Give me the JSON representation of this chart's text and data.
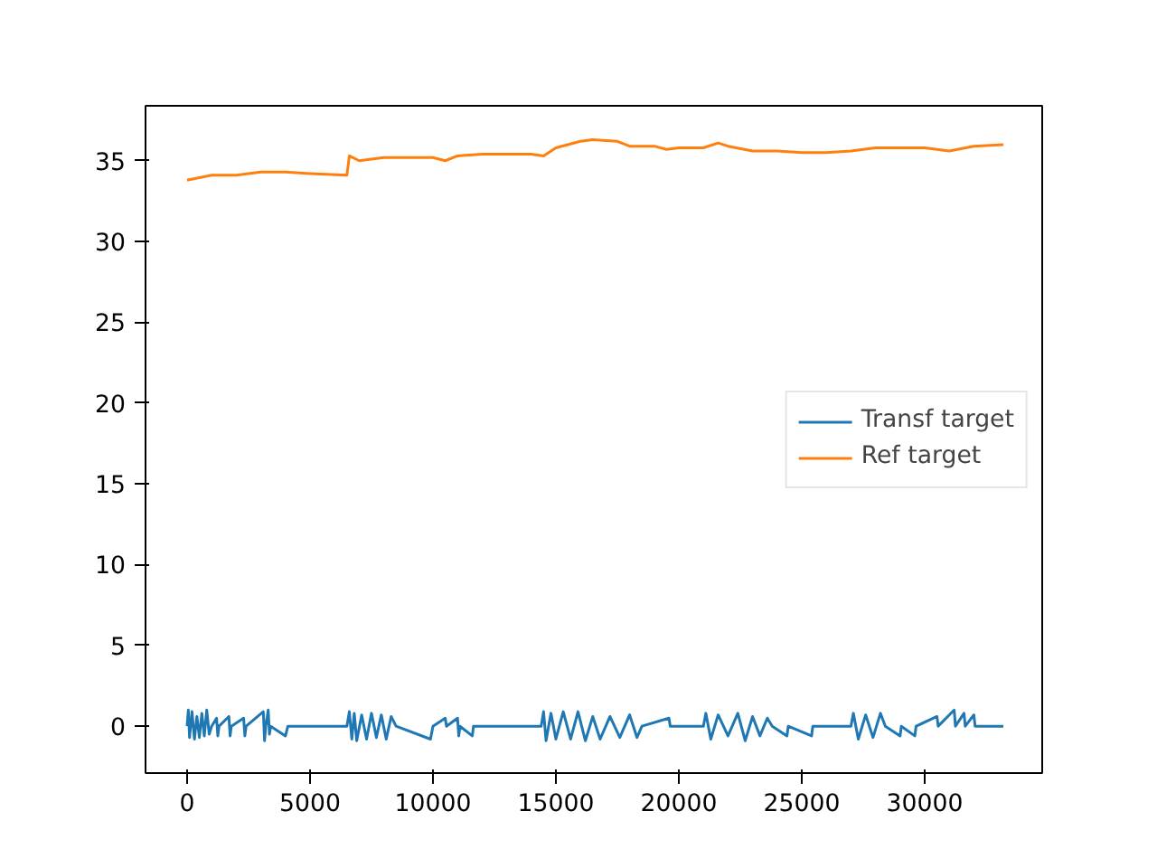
{
  "chart_data": {
    "type": "line",
    "xlim": [
      -1690,
      34780
    ],
    "ylim": [
      -2.9,
      38.4
    ],
    "xticks": [
      0,
      5000,
      10000,
      15000,
      20000,
      25000,
      30000
    ],
    "yticks": [
      0,
      5,
      10,
      15,
      20,
      25,
      30,
      35
    ],
    "grid": false,
    "legend": "right",
    "line_style": "solid",
    "marker": "none",
    "series": [
      {
        "name": "Transf target",
        "color": "#1f77b4",
        "x": [
          0,
          50,
          100,
          200,
          300,
          400,
          500,
          600,
          700,
          800,
          900,
          1000,
          1200,
          1250,
          1300,
          1700,
          1750,
          1800,
          2300,
          2350,
          2400,
          3100,
          3150,
          3200,
          3300,
          3350,
          3400,
          4000,
          4100,
          6500,
          6600,
          6700,
          6800,
          6900,
          7100,
          7300,
          7500,
          7700,
          7900,
          8100,
          8300,
          8500,
          9900,
          10000,
          10500,
          10550,
          11000,
          11050,
          11100,
          11600,
          11650,
          14400,
          14500,
          14600,
          14800,
          15000,
          15300,
          15600,
          15900,
          16200,
          16500,
          16800,
          17200,
          17600,
          18000,
          18300,
          18500,
          19600,
          19650,
          21000,
          21100,
          21300,
          21600,
          22000,
          22400,
          22700,
          23000,
          23300,
          23600,
          23800,
          24400,
          24450,
          25400,
          25450,
          27000,
          27100,
          27300,
          27600,
          27900,
          28200,
          28400,
          29000,
          29050,
          29600,
          29650,
          30500,
          30550,
          31200,
          31250,
          31600,
          31650,
          32000,
          32050,
          33200
        ],
        "values": [
          0,
          1.0,
          -0.7,
          0.9,
          -0.8,
          0.6,
          -0.7,
          0.8,
          -0.6,
          1.0,
          -0.5,
          0,
          0.5,
          -0.6,
          0,
          0.6,
          -0.6,
          0,
          0.5,
          -0.6,
          0,
          0.9,
          -0.9,
          0,
          1.0,
          -0.5,
          0,
          -0.6,
          0,
          0,
          0.9,
          -0.8,
          0.8,
          -0.9,
          0.7,
          -0.8,
          0.8,
          -0.7,
          0.7,
          -0.8,
          0.6,
          0,
          -0.8,
          0,
          0.5,
          0,
          0.5,
          -0.6,
          0,
          -0.6,
          0,
          0,
          0.9,
          -0.9,
          0.8,
          -0.8,
          0.9,
          -0.8,
          0.9,
          -0.9,
          0.6,
          -0.8,
          0.6,
          -0.7,
          0.7,
          -0.7,
          0,
          0.5,
          0,
          0,
          0.8,
          -0.8,
          0.7,
          -0.6,
          0.8,
          -0.9,
          0.6,
          -0.6,
          0.5,
          0,
          -0.6,
          0,
          -0.6,
          0,
          0,
          0.8,
          -0.8,
          0.7,
          -0.7,
          0.8,
          0,
          -0.6,
          0,
          -0.6,
          0,
          0.6,
          0,
          1.0,
          0,
          0.8,
          0,
          0.7,
          0,
          0
        ]
      },
      {
        "name": "Ref target",
        "color": "#ff7f0e",
        "x": [
          0,
          1000,
          2000,
          3000,
          4000,
          5000,
          6500,
          6600,
          7000,
          8000,
          9000,
          10000,
          10500,
          11000,
          12000,
          13000,
          14000,
          14500,
          15000,
          16000,
          16500,
          17500,
          18000,
          19000,
          19500,
          20000,
          21000,
          21600,
          22000,
          23000,
          24000,
          25000,
          26000,
          27000,
          28000,
          29000,
          30000,
          31000,
          32000,
          33200
        ],
        "values": [
          33.8,
          34.1,
          34.1,
          34.3,
          34.3,
          34.2,
          34.1,
          35.3,
          35.0,
          35.2,
          35.2,
          35.2,
          35.0,
          35.3,
          35.4,
          35.4,
          35.4,
          35.3,
          35.8,
          36.2,
          36.3,
          36.2,
          35.9,
          35.9,
          35.7,
          35.8,
          35.8,
          36.1,
          35.9,
          35.6,
          35.6,
          35.5,
          35.5,
          35.6,
          35.8,
          35.8,
          35.8,
          35.6,
          35.9,
          36.0
        ]
      }
    ]
  }
}
